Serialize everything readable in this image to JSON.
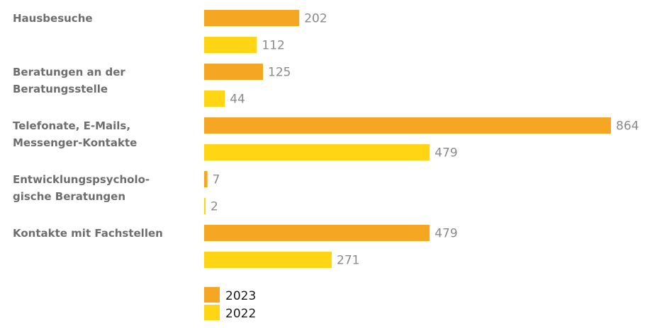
{
  "chart_data": {
    "type": "bar",
    "orientation": "horizontal",
    "categories": [
      "Hausbesuche",
      "Beratungen an der Beratungsstelle",
      "Telefonate, E-Mails, Messenger-Kontakte",
      "Entwicklungspsycholo-gische Beratungen",
      "Kontakte mit Fachstellen"
    ],
    "category_lines": [
      [
        "Hausbesuche"
      ],
      [
        "Beratungen an der",
        "Beratungsstelle"
      ],
      [
        "Telefonate, E-Mails,",
        "Messenger-Kontakte"
      ],
      [
        "Entwicklungspsycholo-",
        "gische Beratungen"
      ],
      [
        "Kontakte mit Fachstellen"
      ]
    ],
    "series": [
      {
        "name": "2023",
        "color": "#F5A623",
        "values": [
          202,
          125,
          864,
          7,
          479
        ]
      },
      {
        "name": "2022",
        "color": "#FFD514",
        "values": [
          112,
          44,
          479,
          2,
          271
        ]
      }
    ],
    "xlim": [
      0,
      864
    ],
    "grid": false,
    "legend_position": "bottom"
  }
}
